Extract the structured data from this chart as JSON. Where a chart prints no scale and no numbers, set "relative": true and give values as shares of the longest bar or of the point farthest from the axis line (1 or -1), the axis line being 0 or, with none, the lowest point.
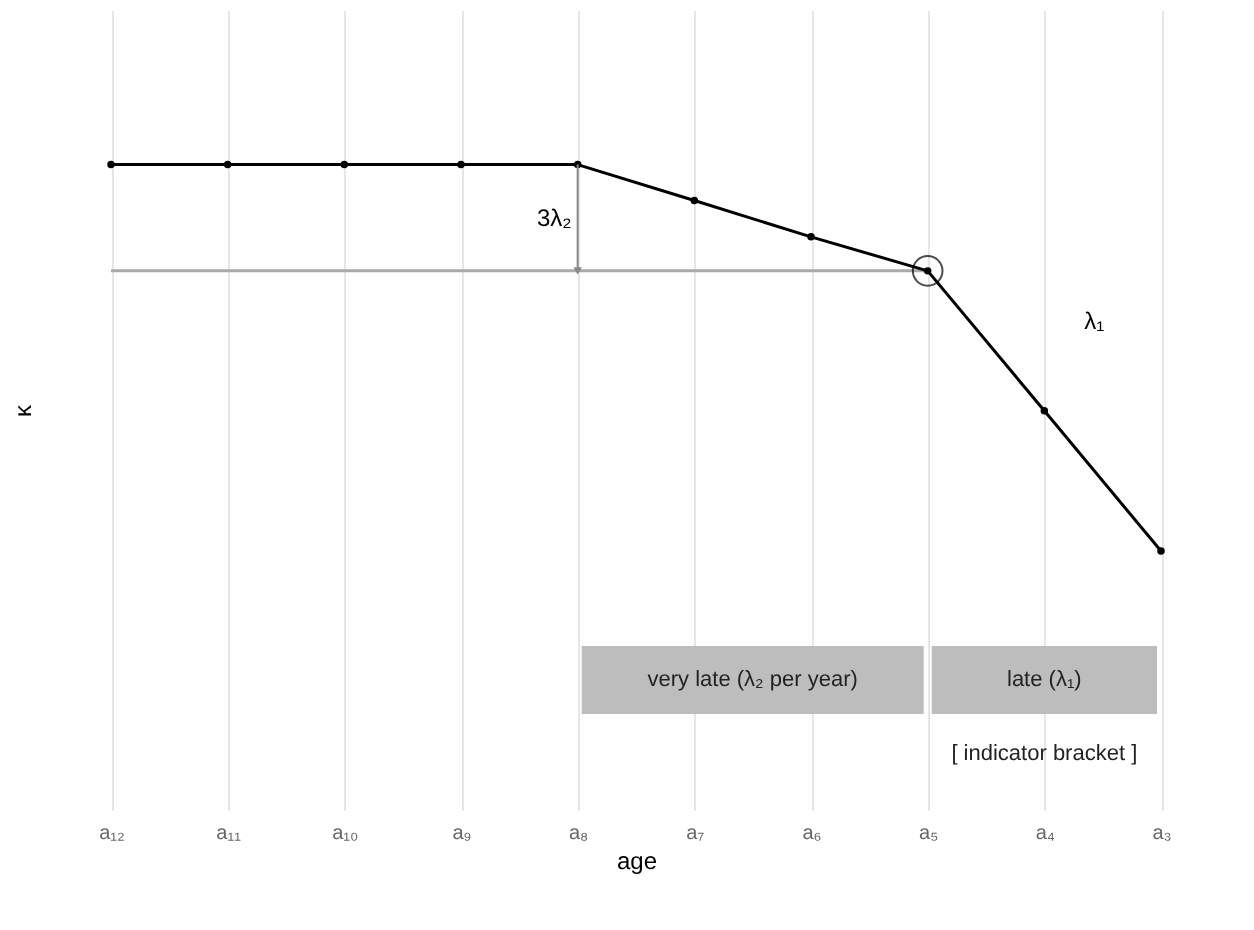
{
  "chart_data": {
    "type": "line",
    "relative": true,
    "xlabel": "age",
    "ylabel": "κ",
    "categories": [
      "a₁₂",
      "a₁₁",
      "a₁₀",
      "a₉",
      "a₈",
      "a₇",
      "a₆",
      "a₅",
      "a₄",
      "a₃"
    ],
    "series": [
      {
        "color": "#000000",
        "values": [
          1,
          1,
          1,
          1,
          1,
          0.907,
          0.813,
          0.725,
          0.363,
          0
        ],
        "marker": "circle"
      },
      {
        "type": "scatter",
        "color": "#000000",
        "x": [
          "a₅"
        ],
        "values": [
          0.725
        ],
        "marker": "circle"
      }
    ],
    "ref_lines": [
      {
        "axis": "y",
        "value": 0.725,
        "color": "#aaaaaa"
      }
    ],
    "annotations": [
      "3λ₂",
      "λ₁",
      "very late (λ₂ per year)",
      "late (λ₁)",
      "[   indicator bracket   ]"
    ],
    "grid": "x",
    "tick_labels": "x"
  }
}
